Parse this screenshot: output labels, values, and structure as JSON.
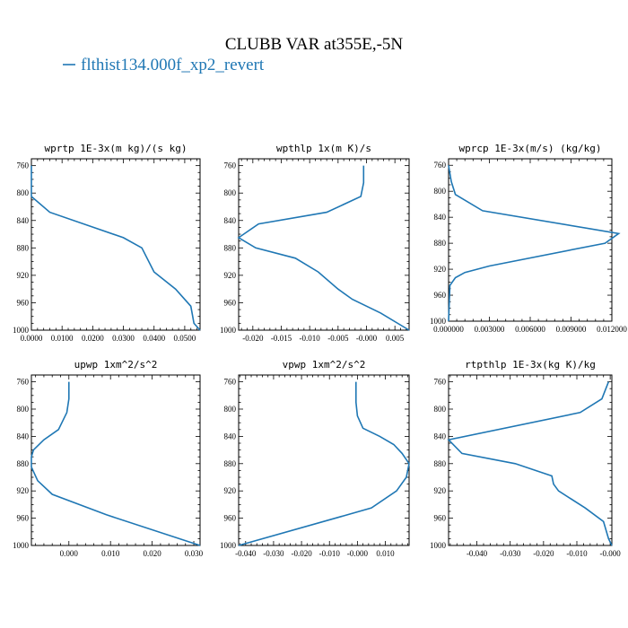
{
  "title": "CLUBB VAR at355E,-5N",
  "legend": {
    "entries": [
      {
        "name": "flthist134.000f_xp2_revert",
        "color": "#1f77b4"
      }
    ]
  },
  "chart_data": [
    {
      "type": "line",
      "title": "wprtp  1E-3x(m kg)/(s kg)",
      "xlim": [
        0.0,
        0.055
      ],
      "ylim": [
        1000,
        750
      ],
      "xticks": [
        0.0,
        0.01,
        0.02,
        0.03,
        0.04,
        0.05
      ],
      "xtick_labels": [
        "0.0000",
        "0.0100",
        "0.0200",
        "0.0300",
        "0.0400",
        "0.0500"
      ],
      "yticks": [
        760,
        800,
        840,
        880,
        920,
        960,
        1000
      ],
      "series": [
        {
          "color": "#1f77b4",
          "x": [
            0.0,
            0.0,
            0.006,
            0.03,
            0.036,
            0.04,
            0.047,
            0.052,
            0.053,
            0.055
          ],
          "y": [
            760,
            805,
            828,
            865,
            880,
            915,
            940,
            965,
            990,
            1000
          ]
        }
      ]
    },
    {
      "type": "line",
      "title": "wpthlp  1x(m K)/s",
      "xlim": [
        -0.0225,
        0.0075
      ],
      "ylim": [
        1000,
        750
      ],
      "xticks": [
        -0.02,
        -0.015,
        -0.01,
        -0.005,
        0.0,
        0.005
      ],
      "xtick_labels": [
        "-0.020",
        "-0.015",
        "-0.010",
        "-0.005",
        "-0.000",
        "0.005"
      ],
      "yticks": [
        760,
        800,
        840,
        880,
        920,
        960,
        1000
      ],
      "series": [
        {
          "color": "#1f77b4",
          "x": [
            -0.0005,
            -0.0005,
            -0.001,
            -0.007,
            -0.019,
            -0.0225,
            -0.0195,
            -0.0125,
            -0.0085,
            -0.005,
            -0.0025,
            0.0025,
            0.0075
          ],
          "y": [
            760,
            785,
            805,
            828,
            845,
            865,
            880,
            895,
            915,
            940,
            955,
            975,
            1000
          ]
        }
      ]
    },
    {
      "type": "line",
      "title": "wprcp  1E-3x(m/s) (kg/kg)",
      "xlim": [
        0.0,
        0.012
      ],
      "ylim": [
        1000,
        750
      ],
      "xticks": [
        0.0,
        0.003,
        0.006,
        0.009,
        0.012
      ],
      "xtick_labels": [
        "0.000000",
        "0.003000",
        "0.006000",
        "0.009000",
        "0.012000"
      ],
      "yticks": [
        760,
        800,
        840,
        880,
        920,
        960,
        1000
      ],
      "series": [
        {
          "color": "#1f77b4",
          "x": [
            0.0,
            0.0002,
            0.0005,
            0.0025,
            0.0125,
            0.0115,
            0.003,
            0.0012,
            0.0005,
            0.0001,
            0.0
          ],
          "y": [
            760,
            785,
            805,
            830,
            865,
            880,
            915,
            925,
            933,
            945,
            1000
          ]
        }
      ]
    },
    {
      "type": "line",
      "title": "upwp  1xm^2/s^2",
      "xlim": [
        -0.009,
        0.0315
      ],
      "ylim": [
        1000,
        750
      ],
      "xticks": [
        0.0,
        0.01,
        0.02,
        0.03
      ],
      "xtick_labels": [
        "0.000",
        "0.010",
        "0.020",
        "0.030"
      ],
      "yticks": [
        760,
        800,
        840,
        880,
        920,
        960,
        1000
      ],
      "series": [
        {
          "color": "#1f77b4",
          "x": [
            0.0,
            0.0,
            -0.0005,
            -0.0025,
            -0.006,
            -0.0085,
            -0.009,
            -0.009,
            -0.0075,
            -0.004,
            0.009,
            0.0315
          ],
          "y": [
            760,
            785,
            805,
            830,
            845,
            860,
            870,
            885,
            905,
            925,
            955,
            1000
          ]
        }
      ]
    },
    {
      "type": "line",
      "title": "vpwp  1xm^2/s^2",
      "xlim": [
        -0.0425,
        0.0185
      ],
      "ylim": [
        1000,
        750
      ],
      "xticks": [
        -0.04,
        -0.03,
        -0.02,
        -0.01,
        0.0,
        0.01
      ],
      "xtick_labels": [
        "-0.040",
        "-0.030",
        "-0.020",
        "-0.010",
        "-0.000",
        "0.010"
      ],
      "yticks": [
        760,
        800,
        840,
        880,
        920,
        960,
        1000
      ],
      "series": [
        {
          "color": "#1f77b4",
          "x": [
            -0.0005,
            -0.0005,
            0.0,
            0.002,
            0.008,
            0.013,
            0.016,
            0.0185,
            0.0175,
            0.014,
            0.005,
            -0.0425
          ],
          "y": [
            760,
            790,
            810,
            828,
            840,
            852,
            865,
            880,
            900,
            920,
            945,
            1000
          ]
        }
      ]
    },
    {
      "type": "line",
      "title": "rtpthlp  1E-3x(kg K)/kg",
      "xlim": [
        -0.0485,
        0.0005
      ],
      "ylim": [
        1000,
        750
      ],
      "xticks": [
        -0.04,
        -0.03,
        -0.02,
        -0.01,
        0.0
      ],
      "xtick_labels": [
        "-0.040",
        "-0.030",
        "-0.020",
        "-0.010",
        "-0.000"
      ],
      "yticks": [
        760,
        800,
        840,
        880,
        920,
        960,
        1000
      ],
      "series": [
        {
          "color": "#1f77b4",
          "x": [
            -0.0005,
            -0.0025,
            -0.009,
            -0.0485,
            -0.0445,
            -0.0285,
            -0.0175,
            -0.017,
            -0.0155,
            -0.0075,
            -0.002,
            -0.0005,
            0.0005
          ],
          "y": [
            760,
            785,
            805,
            845,
            865,
            880,
            898,
            910,
            920,
            945,
            965,
            990,
            1000
          ]
        }
      ]
    }
  ]
}
